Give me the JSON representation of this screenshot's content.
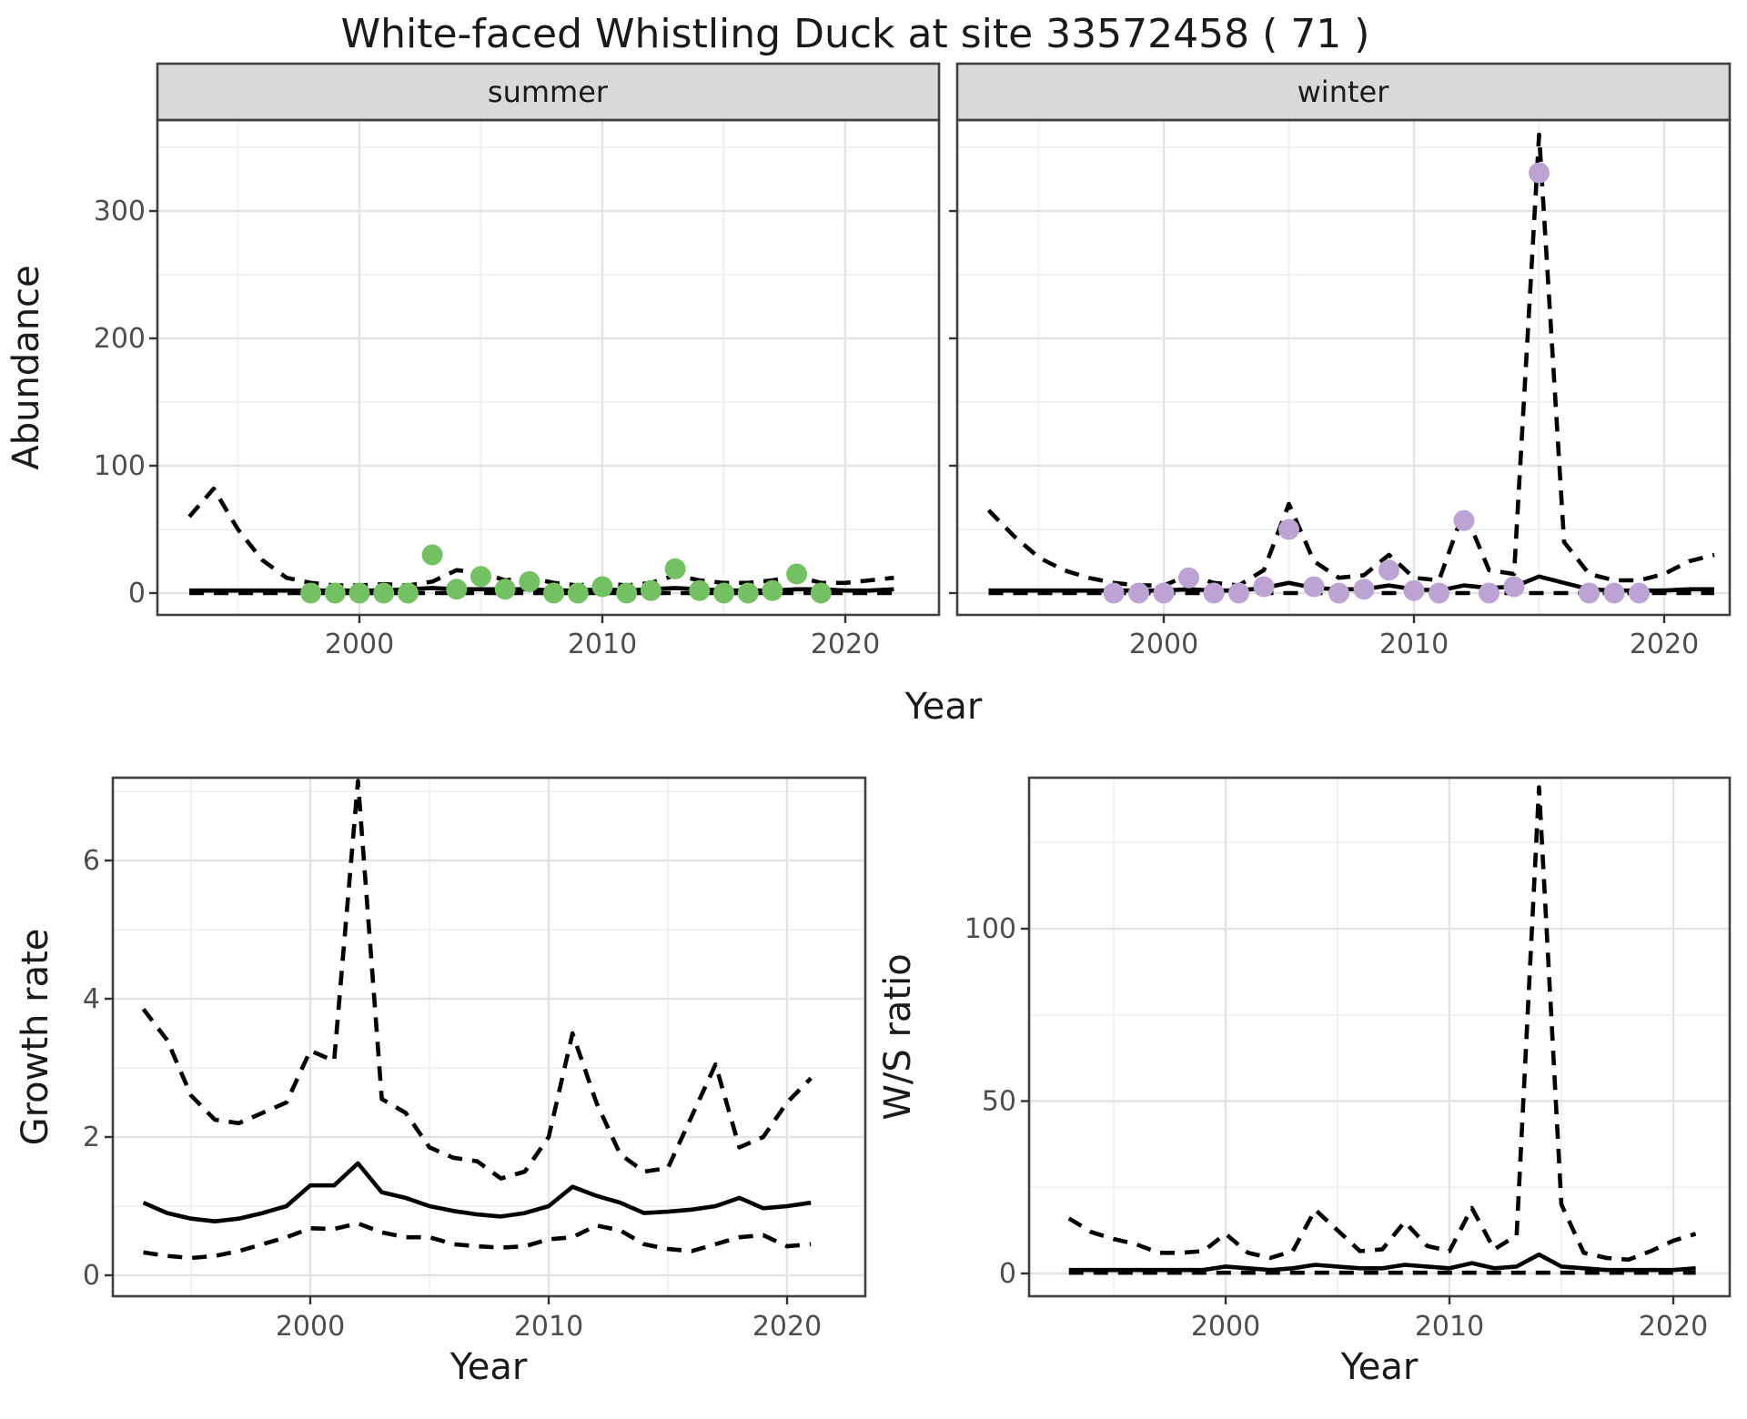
{
  "title": "White-faced Whistling Duck at site 33572458 ( 71 )",
  "axis_labels": {
    "abundance": "Abundance",
    "year": "Year",
    "growth_rate": "Growth rate",
    "ws_ratio": "W/S ratio"
  },
  "facets": {
    "summer": "summer",
    "winter": "winter"
  },
  "colors": {
    "summer_point": "#74C163",
    "winter_point": "#BCA3D4",
    "line": "#000000",
    "strip_bg": "#D9D9D9",
    "panel_bg": "#FFFFFF",
    "grid_major": "#E3E3E3",
    "grid_minor": "#F1F1F1",
    "panel_border": "#404040",
    "tick_text": "#4D4D4D"
  },
  "chart_data": [
    {
      "id": "abundance_summer",
      "type": "line",
      "facet_label": "summer",
      "xlabel": "Year",
      "ylabel": "Abundance",
      "x_ticks": [
        2000,
        2010,
        2020
      ],
      "x_minor_ticks": [
        1995,
        2005,
        2015
      ],
      "y_ticks": [
        0,
        100,
        200,
        300
      ],
      "y_minor_ticks": [
        50,
        150,
        250,
        350
      ],
      "ylim": [
        0,
        371
      ],
      "xlim": [
        1992,
        2024
      ],
      "legend": "none",
      "grid": "on",
      "lines": {
        "years": [
          1993,
          1994,
          1995,
          1996,
          1997,
          1998,
          1999,
          2000,
          2001,
          2002,
          2003,
          2004,
          2005,
          2006,
          2007,
          2008,
          2009,
          2010,
          2011,
          2012,
          2013,
          2014,
          2015,
          2016,
          2017,
          2018,
          2019,
          2020,
          2021,
          2022
        ],
        "median": [
          2,
          2,
          2,
          2,
          2,
          2,
          2,
          2,
          2,
          3,
          4,
          3,
          3,
          3,
          3,
          2,
          2,
          3,
          2,
          3,
          4,
          3,
          2,
          2,
          2,
          3,
          3,
          2,
          2,
          3
        ],
        "upper_ci": [
          60,
          82,
          50,
          26,
          12,
          8,
          6,
          6,
          7,
          6,
          9,
          18,
          16,
          10,
          12,
          8,
          6,
          8,
          6,
          8,
          14,
          10,
          8,
          8,
          10,
          13,
          8,
          8,
          10,
          12
        ],
        "lower_ci": [
          0,
          0,
          0,
          0,
          0,
          0,
          0,
          0,
          0,
          0,
          0,
          0,
          0,
          0,
          0,
          0,
          0,
          0,
          0,
          0,
          0,
          0,
          0,
          0,
          0,
          0,
          0,
          0,
          0,
          0
        ]
      },
      "points": {
        "years": [
          1998,
          1999,
          2000,
          2001,
          2002,
          2003,
          2004,
          2005,
          2006,
          2007,
          2008,
          2009,
          2010,
          2011,
          2012,
          2013,
          2014,
          2015,
          2016,
          2017,
          2018,
          2019
        ],
        "values": [
          0,
          0,
          0,
          0,
          0,
          30,
          3,
          13,
          3,
          9,
          0,
          0,
          5,
          0,
          2,
          19,
          2,
          0,
          0,
          2,
          15,
          0
        ]
      }
    },
    {
      "id": "abundance_winter",
      "type": "line",
      "facet_label": "winter",
      "xlabel": "Year",
      "ylabel": "Abundance",
      "x_ticks": [
        2000,
        2010,
        2020
      ],
      "x_minor_ticks": [
        1995,
        2005,
        2015
      ],
      "y_ticks": [
        0,
        100,
        200,
        300
      ],
      "y_minor_ticks": [
        50,
        150,
        250,
        350
      ],
      "ylim": [
        0,
        371
      ],
      "xlim": [
        1992,
        2024
      ],
      "legend": "none",
      "grid": "on",
      "lines": {
        "years": [
          1993,
          1994,
          1995,
          1996,
          1997,
          1998,
          1999,
          2000,
          2001,
          2002,
          2003,
          2004,
          2005,
          2006,
          2007,
          2008,
          2009,
          2010,
          2011,
          2012,
          2013,
          2014,
          2015,
          2016,
          2017,
          2018,
          2019,
          2020,
          2021,
          2022
        ],
        "median": [
          2,
          2,
          2,
          2,
          2,
          2,
          2,
          2,
          3,
          2,
          2,
          4,
          8,
          4,
          3,
          3,
          6,
          3,
          2,
          6,
          4,
          5,
          13,
          8,
          3,
          2,
          2,
          2,
          3,
          3
        ],
        "upper_ci": [
          65,
          45,
          28,
          18,
          12,
          8,
          6,
          6,
          14,
          8,
          6,
          18,
          70,
          25,
          12,
          14,
          30,
          12,
          10,
          65,
          18,
          15,
          360,
          40,
          15,
          10,
          10,
          15,
          25,
          30
        ],
        "lower_ci": [
          0,
          0,
          0,
          0,
          0,
          0,
          0,
          0,
          0,
          0,
          0,
          0,
          0,
          0,
          0,
          0,
          0,
          0,
          0,
          0,
          0,
          0,
          0,
          0,
          0,
          0,
          0,
          0,
          0,
          0
        ]
      },
      "points": {
        "years": [
          1998,
          1999,
          2000,
          2001,
          2002,
          2003,
          2004,
          2005,
          2006,
          2007,
          2008,
          2009,
          2010,
          2011,
          2012,
          2013,
          2014,
          2015,
          2017,
          2018,
          2019
        ],
        "values": [
          0,
          0,
          0,
          12,
          0,
          0,
          5,
          50,
          5,
          0,
          3,
          18,
          2,
          0,
          57,
          0,
          5,
          330,
          0,
          0,
          0
        ]
      }
    },
    {
      "id": "growth_rate",
      "type": "line",
      "facet_label": null,
      "xlabel": "Year",
      "ylabel": "Growth rate",
      "x_ticks": [
        2000,
        2010,
        2020
      ],
      "x_minor_ticks": [
        1995,
        2005,
        2015
      ],
      "y_ticks": [
        0,
        2,
        4,
        6
      ],
      "y_minor_ticks": [
        1,
        3,
        5,
        7
      ],
      "ylim": [
        0,
        7.5
      ],
      "xlim": [
        1992,
        2023
      ],
      "legend": "none",
      "grid": "on",
      "lines": {
        "years": [
          1993,
          1994,
          1995,
          1996,
          1997,
          1998,
          1999,
          2000,
          2001,
          2002,
          2003,
          2004,
          2005,
          2006,
          2007,
          2008,
          2009,
          2010,
          2011,
          2012,
          2013,
          2014,
          2015,
          2016,
          2017,
          2018,
          2019,
          2020,
          2021
        ],
        "median": [
          1.05,
          0.9,
          0.82,
          0.78,
          0.82,
          0.9,
          1.0,
          1.3,
          1.3,
          1.62,
          1.2,
          1.12,
          1.0,
          0.93,
          0.88,
          0.85,
          0.9,
          1.0,
          1.28,
          1.15,
          1.05,
          0.9,
          0.92,
          0.95,
          1.0,
          1.12,
          0.97,
          1.0,
          1.05
        ],
        "upper_ci": [
          3.85,
          3.4,
          2.6,
          2.25,
          2.2,
          2.35,
          2.5,
          3.25,
          3.1,
          7.15,
          2.55,
          2.35,
          1.85,
          1.7,
          1.65,
          1.4,
          1.5,
          2.0,
          3.5,
          2.5,
          1.75,
          1.5,
          1.55,
          2.3,
          3.05,
          1.85,
          2.0,
          2.5,
          2.85
        ],
        "lower_ci": [
          0.33,
          0.28,
          0.25,
          0.28,
          0.35,
          0.45,
          0.55,
          0.68,
          0.67,
          0.75,
          0.62,
          0.55,
          0.55,
          0.45,
          0.42,
          0.4,
          0.42,
          0.52,
          0.55,
          0.72,
          0.65,
          0.45,
          0.38,
          0.35,
          0.45,
          0.55,
          0.58,
          0.42,
          0.45
        ]
      },
      "points": null
    },
    {
      "id": "ws_ratio",
      "type": "line",
      "facet_label": null,
      "xlabel": "Year",
      "ylabel": "W/S ratio",
      "x_ticks": [
        2000,
        2010,
        2020
      ],
      "x_minor_ticks": [
        1995,
        2005,
        2015
      ],
      "y_ticks": [
        0,
        50,
        100
      ],
      "y_minor_ticks": [
        25,
        75,
        125
      ],
      "ylim": [
        0,
        144
      ],
      "xlim": [
        1991,
        2023
      ],
      "legend": "none",
      "grid": "on",
      "lines": {
        "years": [
          1993,
          1994,
          1995,
          1996,
          1997,
          1998,
          1999,
          2000,
          2001,
          2002,
          2003,
          2004,
          2005,
          2006,
          2007,
          2008,
          2009,
          2010,
          2011,
          2012,
          2013,
          2014,
          2015,
          2016,
          2017,
          2018,
          2019,
          2020,
          2021
        ],
        "median": [
          1,
          1,
          1,
          1,
          1,
          1,
          1,
          2,
          1.5,
          1,
          1.5,
          2.5,
          2,
          1.5,
          1.5,
          2.5,
          2,
          1.5,
          3,
          1.5,
          2,
          5.5,
          2,
          1.5,
          1,
          1,
          1,
          1,
          1.5
        ],
        "upper_ci": [
          16,
          12,
          10,
          8.5,
          6,
          6,
          6.5,
          11.5,
          6,
          4.5,
          6.5,
          18.5,
          12.5,
          6.5,
          7,
          15,
          8,
          6.5,
          19,
          7,
          11,
          141,
          20,
          6,
          4.5,
          4,
          6.5,
          9.5,
          11.5
        ],
        "lower_ci": [
          0.2,
          0.2,
          0.2,
          0.2,
          0.2,
          0.2,
          0.2,
          0.2,
          0.2,
          0.2,
          0.2,
          0.2,
          0.2,
          0.2,
          0.2,
          0.2,
          0.2,
          0.2,
          0.2,
          0.2,
          0.2,
          0.2,
          0.2,
          0.2,
          0.2,
          0.2,
          0.2,
          0.2,
          0.2
        ]
      },
      "points": null
    }
  ]
}
